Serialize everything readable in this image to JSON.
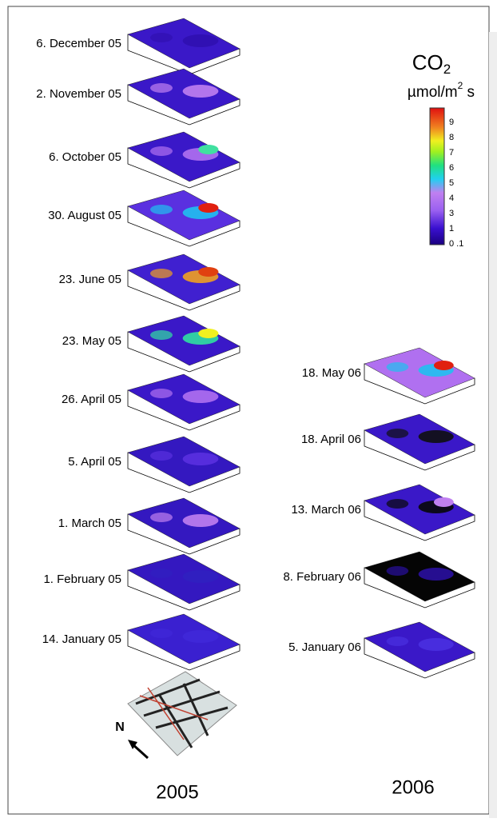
{
  "colorbar": {
    "title": "CO",
    "title_subscript": "2",
    "unit": "µmol/m",
    "unit_superscript": "2",
    "unit_suffix": " s",
    "ticks": [
      "9",
      "8",
      "7",
      "6",
      "5",
      "4",
      "3",
      "1",
      "0 .1"
    ]
  },
  "column_2005": {
    "year": "2005",
    "maps": [
      "6. December 05",
      "2. November 05",
      "6. October 05",
      "30. August 05",
      "23. June 05",
      "23. May 05",
      "26. April 05",
      "5. April 05",
      "1. March 05",
      "1. February 05",
      "14. January 05"
    ]
  },
  "column_2006": {
    "year": "2006",
    "maps": [
      "18. May 06",
      "18. April 06",
      "13. March 06",
      "8. February 06",
      "5. January 06"
    ]
  },
  "north_label": "N"
}
